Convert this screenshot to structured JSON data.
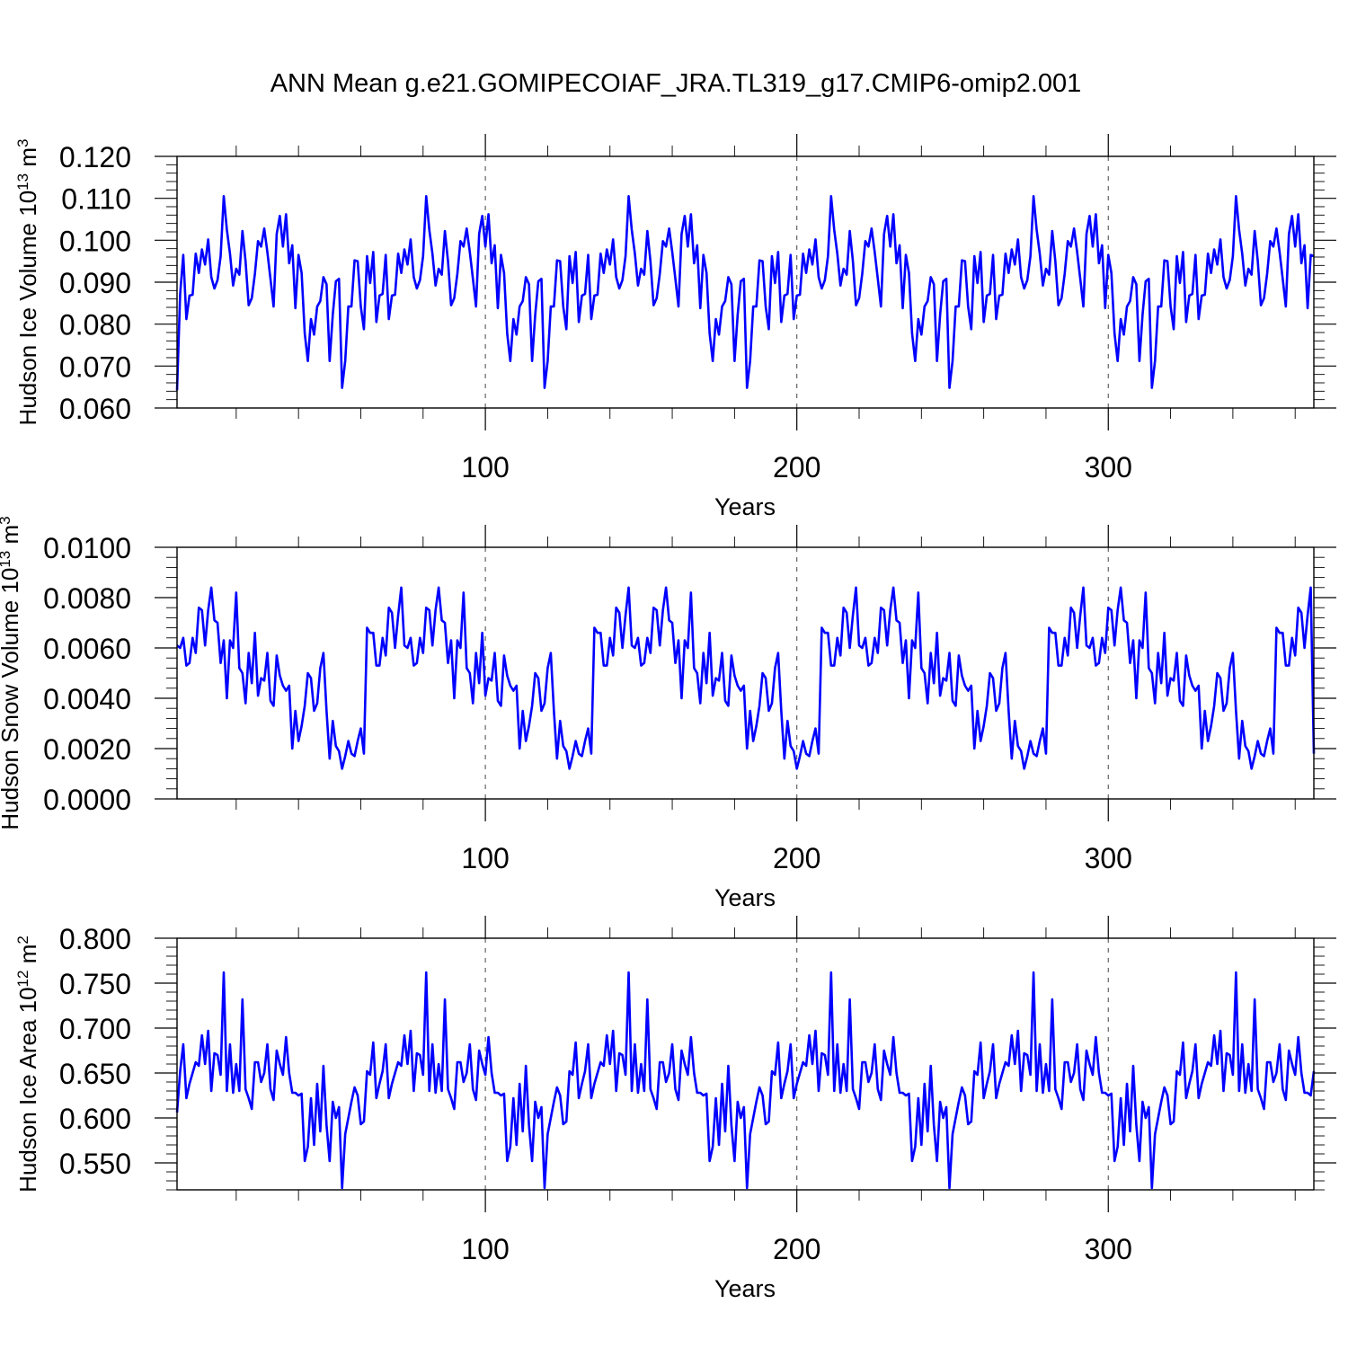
{
  "title": "ANN Mean g.e21.GOMIPECOIAF_JRA.TL319_g17.CMIP6-omip2.001",
  "chart_data": [
    {
      "type": "line",
      "name": "ice-volume",
      "ylabel": "Hudson Ice Volume 10",
      "ylabel_exp": "13",
      "ylabel_unit": " m",
      "ylabel_unit_exp": "3",
      "xlabel": "Years",
      "xlim": [
        1,
        366
      ],
      "ylim": [
        0.06,
        0.12
      ],
      "xticks": [
        100,
        200,
        300
      ],
      "xtick_labels": [
        "100",
        "200",
        "300"
      ],
      "yticks": [
        0.06,
        0.07,
        0.08,
        0.09,
        0.1,
        0.11,
        0.12
      ],
      "ytick_labels": [
        "0.060",
        "0.070",
        "0.080",
        "0.090",
        "0.100",
        "0.110",
        "0.120"
      ],
      "y_minor_step": 0.002,
      "x_minor_step": 20,
      "x_start": 1,
      "cycle_start": 2,
      "cycle": [
        0.0965,
        0.0812,
        0.0868,
        0.087,
        0.0968,
        0.0922,
        0.0978,
        0.0942,
        0.1002,
        0.0912,
        0.0885,
        0.0905,
        0.0962,
        0.1105,
        0.1025,
        0.0968,
        0.0892,
        0.0932,
        0.0918,
        0.1022,
        0.095,
        0.0845,
        0.0862,
        0.092,
        0.0998,
        0.0985,
        0.1028,
        0.0972,
        0.0908,
        0.0842,
        0.1015,
        0.1058,
        0.0985,
        0.1062,
        0.0945,
        0.0988,
        0.0838,
        0.0965,
        0.0922,
        0.0778,
        0.0712,
        0.0812,
        0.0775,
        0.0842,
        0.0855,
        0.0912,
        0.0895,
        0.0712,
        0.0822,
        0.0902,
        0.0908,
        0.0648,
        0.0712,
        0.0842,
        0.0842,
        0.0952,
        0.095,
        0.0842,
        0.0788,
        0.0962,
        0.0898,
        0.0972,
        0.0805,
        0.0868,
        0.0872
      ],
      "first_value": 0.0642,
      "last_value": 0.0962,
      "line_color": "#0000ff"
    },
    {
      "type": "line",
      "name": "snow-volume",
      "ylabel": "Hudson Snow Volume 10",
      "ylabel_exp": "13",
      "ylabel_unit": " m",
      "ylabel_unit_exp": "3",
      "xlabel": "Years",
      "xlim": [
        1,
        366
      ],
      "ylim": [
        0.0,
        0.01
      ],
      "xticks": [
        100,
        200,
        300
      ],
      "xtick_labels": [
        "100",
        "200",
        "300"
      ],
      "yticks": [
        0.0,
        0.002,
        0.004,
        0.006,
        0.008,
        0.01
      ],
      "ytick_labels": [
        "0.0000",
        "0.0020",
        "0.0040",
        "0.0060",
        "0.0080",
        "0.0100"
      ],
      "y_minor_step": 0.0004,
      "x_minor_step": 20,
      "x_start": 1,
      "cycle_start": 0,
      "cycle": [
        0.0061,
        0.006,
        0.0064,
        0.0053,
        0.0054,
        0.0064,
        0.0058,
        0.0076,
        0.0075,
        0.0061,
        0.0075,
        0.0084,
        0.0071,
        0.007,
        0.0054,
        0.0063,
        0.004,
        0.0063,
        0.006,
        0.0082,
        0.0052,
        0.005,
        0.0038,
        0.0058,
        0.0046,
        0.0066,
        0.0041,
        0.0048,
        0.0047,
        0.0058,
        0.0039,
        0.0037,
        0.0057,
        0.0049,
        0.0045,
        0.0043,
        0.0045,
        0.002,
        0.0035,
        0.0023,
        0.0029,
        0.0037,
        0.005,
        0.0048,
        0.0035,
        0.0038,
        0.0052,
        0.0058,
        0.0035,
        0.0016,
        0.0031,
        0.0021,
        0.0019,
        0.0012,
        0.0017,
        0.0023,
        0.0018,
        0.0017,
        0.0023,
        0.0028,
        0.0018,
        0.0068,
        0.0066,
        0.0066,
        0.0053,
        0.0053,
        0.0064,
        0.0057,
        0.0076,
        0.0074,
        0.006,
        0.0073,
        0.0084
      ],
      "first_value": 0.0061,
      "last_value": 0.0018,
      "line_color": "#0000ff"
    },
    {
      "type": "line",
      "name": "ice-area",
      "ylabel": "Hudson Ice Area 10",
      "ylabel_exp": "12",
      "ylabel_unit": " m",
      "ylabel_unit_exp": "2",
      "xlabel": "Years",
      "xlim": [
        1,
        366
      ],
      "ylim": [
        0.52,
        0.8
      ],
      "xticks": [
        100,
        200,
        300
      ],
      "xtick_labels": [
        "100",
        "200",
        "300"
      ],
      "yticks": [
        0.55,
        0.6,
        0.65,
        0.7,
        0.75,
        0.8
      ],
      "ytick_labels": [
        "0.550",
        "0.600",
        "0.650",
        "0.700",
        "0.750",
        "0.800"
      ],
      "y_minor_step": 0.01,
      "x_minor_step": 20,
      "x_start": 1,
      "cycle_start": 2,
      "cycle": [
        0.682,
        0.622,
        0.638,
        0.65,
        0.662,
        0.658,
        0.692,
        0.66,
        0.697,
        0.63,
        0.672,
        0.67,
        0.648,
        0.762,
        0.63,
        0.682,
        0.628,
        0.66,
        0.63,
        0.732,
        0.632,
        0.622,
        0.61,
        0.662,
        0.662,
        0.64,
        0.65,
        0.682,
        0.632,
        0.62,
        0.675,
        0.66,
        0.648,
        0.69,
        0.65,
        0.628,
        0.628,
        0.625,
        0.627,
        0.552,
        0.568,
        0.622,
        0.57,
        0.638,
        0.585,
        0.658,
        0.592,
        0.552,
        0.618,
        0.6,
        0.612,
        0.522,
        0.582,
        0.6,
        0.618,
        0.634,
        0.625,
        0.593,
        0.596,
        0.652,
        0.648,
        0.684,
        0.622,
        0.638,
        0.652
      ],
      "first_value": 0.606,
      "last_value": 0.652,
      "line_color": "#0000ff"
    }
  ]
}
